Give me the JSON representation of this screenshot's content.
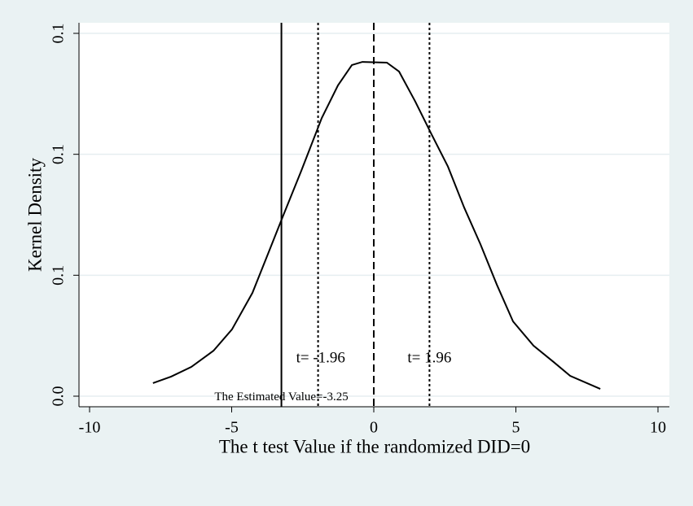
{
  "chart_data": {
    "type": "line",
    "xlabel": "The t test Value if the randomized DID=0",
    "ylabel": "Kernel Density",
    "x": [
      -7.77,
      -7.13,
      -6.42,
      -5.64,
      -4.99,
      -4.27,
      -3.7,
      -3.21,
      -2.55,
      -1.83,
      -1.26,
      -0.77,
      -0.4,
      0.46,
      0.89,
      1.46,
      2.03,
      2.61,
      3.18,
      3.75,
      4.33,
      4.9,
      5.62,
      6.33,
      6.91,
      7.97
    ],
    "y": [
      0.0054,
      0.0081,
      0.0121,
      0.0188,
      0.0276,
      0.0427,
      0.0595,
      0.074,
      0.0932,
      0.115,
      0.1285,
      0.1369,
      0.1382,
      0.1379,
      0.1342,
      0.1218,
      0.1083,
      0.0949,
      0.078,
      0.0629,
      0.0461,
      0.0309,
      0.0209,
      0.0141,
      0.0084,
      0.003
    ],
    "color": "#000000",
    "xlim": [
      -10,
      10
    ],
    "ylim": [
      0,
      0.15
    ],
    "xticks": [
      -10,
      -5,
      0,
      5,
      10
    ],
    "yticks": [
      {
        "value": 0,
        "label": "0.0"
      },
      {
        "value": 0.05,
        "label": "0.1"
      },
      {
        "value": 0.1,
        "label": "0.1"
      },
      {
        "value": 0.15,
        "label": "0.1"
      }
    ],
    "grid": true,
    "reference_lines": [
      {
        "value": -3.25,
        "style": "solid"
      },
      {
        "value": -1.96,
        "style": "dotted"
      },
      {
        "value": 0,
        "style": "dashed"
      },
      {
        "value": 1.96,
        "style": "dotted"
      }
    ],
    "annotations": [
      {
        "text": "t=  -1.96",
        "x": -1.96,
        "y": 0.0155
      },
      {
        "text": "t=  1.96",
        "x": 1.96,
        "y": 0.0155
      },
      {
        "text": "The Estimated Value=-3.25",
        "x": -3.25,
        "y": -0.0005
      }
    ]
  }
}
